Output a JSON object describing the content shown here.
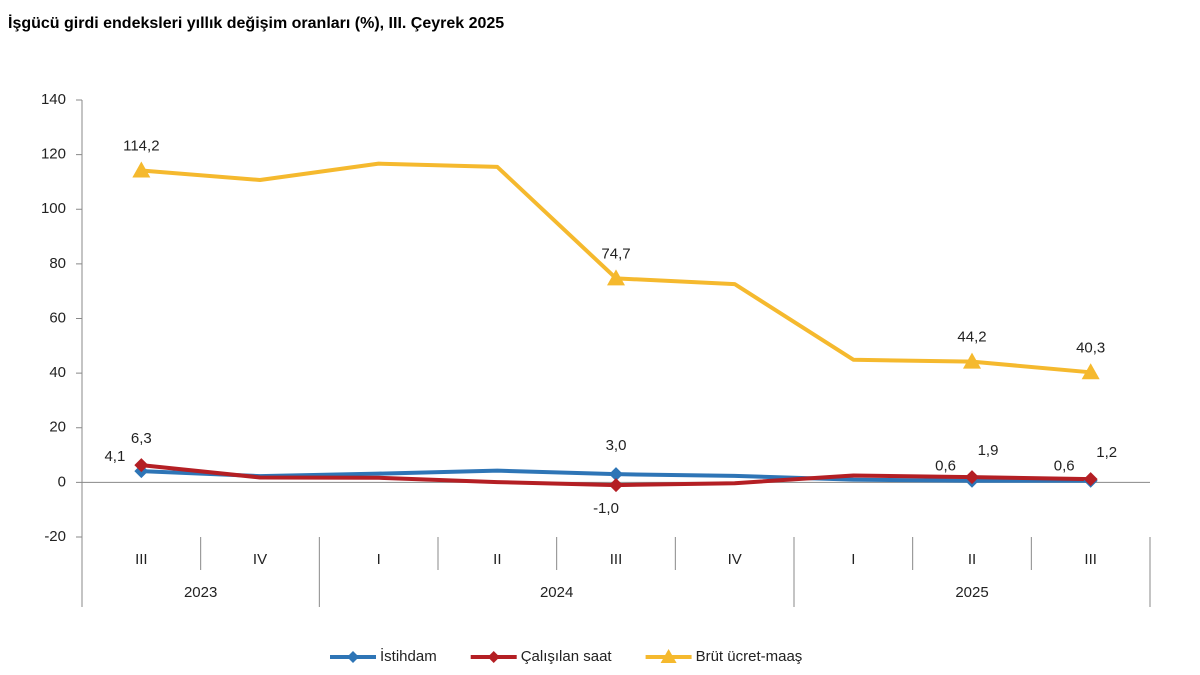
{
  "chart_data": {
    "type": "line",
    "title": "İşgücü girdi endeksleri yıllık değişim oranları (%), III. Çeyrek 2025",
    "categories": [
      "III",
      "IV",
      "I",
      "II",
      "III",
      "IV",
      "I",
      "II",
      "III"
    ],
    "years": [
      "2023",
      "2023",
      "2024",
      "2024",
      "2024",
      "2024",
      "2025",
      "2025",
      "2025"
    ],
    "series": [
      {
        "name": "İstihdam",
        "color": "#2e75b6",
        "marker": "diamond",
        "values": [
          4.1,
          2.3,
          3.2,
          4.3,
          3.0,
          2.4,
          1.0,
          0.6,
          0.6
        ],
        "value_labels": [
          "4,1",
          null,
          null,
          null,
          "3,0",
          null,
          null,
          "0,6",
          "0,6"
        ]
      },
      {
        "name": "Çalışılan saat",
        "color": "#b41f24",
        "marker": "diamond",
        "values": [
          6.3,
          1.8,
          1.7,
          0.1,
          -1.0,
          -0.3,
          2.5,
          1.9,
          1.2
        ],
        "value_labels": [
          "6,3",
          null,
          null,
          null,
          "-1,0",
          null,
          null,
          "1,9",
          "1,2"
        ]
      },
      {
        "name": "Brüt ücret-maaş",
        "color": "#f5b92e",
        "marker": "triangle",
        "values": [
          114.2,
          110.7,
          116.7,
          115.5,
          74.7,
          72.6,
          44.9,
          44.2,
          40.3
        ],
        "value_labels": [
          "114,2",
          null,
          null,
          null,
          "74,7",
          null,
          null,
          "44,2",
          "40,3"
        ]
      }
    ],
    "ylim": [
      -20,
      140
    ],
    "yticks": [
      -20,
      0,
      20,
      40,
      60,
      80,
      100,
      120,
      140
    ],
    "grid": false
  }
}
